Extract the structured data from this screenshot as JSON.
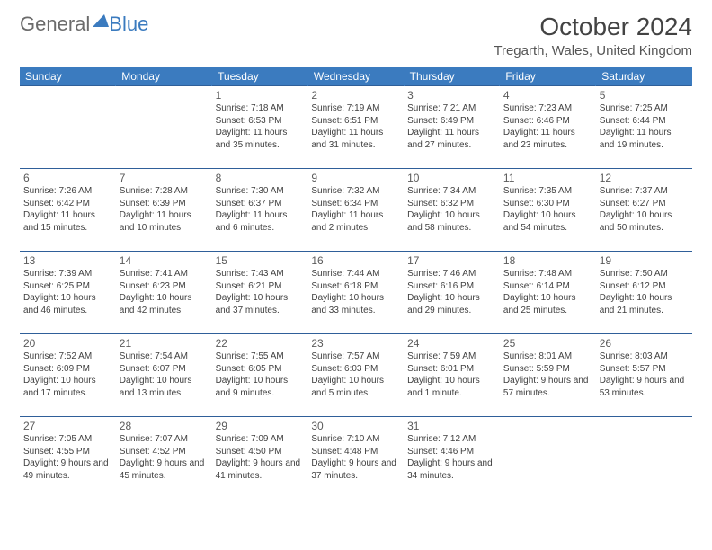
{
  "brand": {
    "text1": "General",
    "text2": "Blue",
    "color1": "#6b6b6b",
    "color2": "#3b7bbf"
  },
  "title": "October 2024",
  "location": "Tregarth, Wales, United Kingdom",
  "header_bg": "#3b7bbf",
  "header_text": "#ffffff",
  "rule_color": "#2f5f99",
  "weekdays": [
    "Sunday",
    "Monday",
    "Tuesday",
    "Wednesday",
    "Thursday",
    "Friday",
    "Saturday"
  ],
  "weeks": [
    [
      null,
      null,
      {
        "n": "1",
        "sr": "7:18 AM",
        "ss": "6:53 PM",
        "dl": "11 hours and 35 minutes."
      },
      {
        "n": "2",
        "sr": "7:19 AM",
        "ss": "6:51 PM",
        "dl": "11 hours and 31 minutes."
      },
      {
        "n": "3",
        "sr": "7:21 AM",
        "ss": "6:49 PM",
        "dl": "11 hours and 27 minutes."
      },
      {
        "n": "4",
        "sr": "7:23 AM",
        "ss": "6:46 PM",
        "dl": "11 hours and 23 minutes."
      },
      {
        "n": "5",
        "sr": "7:25 AM",
        "ss": "6:44 PM",
        "dl": "11 hours and 19 minutes."
      }
    ],
    [
      {
        "n": "6",
        "sr": "7:26 AM",
        "ss": "6:42 PM",
        "dl": "11 hours and 15 minutes."
      },
      {
        "n": "7",
        "sr": "7:28 AM",
        "ss": "6:39 PM",
        "dl": "11 hours and 10 minutes."
      },
      {
        "n": "8",
        "sr": "7:30 AM",
        "ss": "6:37 PM",
        "dl": "11 hours and 6 minutes."
      },
      {
        "n": "9",
        "sr": "7:32 AM",
        "ss": "6:34 PM",
        "dl": "11 hours and 2 minutes."
      },
      {
        "n": "10",
        "sr": "7:34 AM",
        "ss": "6:32 PM",
        "dl": "10 hours and 58 minutes."
      },
      {
        "n": "11",
        "sr": "7:35 AM",
        "ss": "6:30 PM",
        "dl": "10 hours and 54 minutes."
      },
      {
        "n": "12",
        "sr": "7:37 AM",
        "ss": "6:27 PM",
        "dl": "10 hours and 50 minutes."
      }
    ],
    [
      {
        "n": "13",
        "sr": "7:39 AM",
        "ss": "6:25 PM",
        "dl": "10 hours and 46 minutes."
      },
      {
        "n": "14",
        "sr": "7:41 AM",
        "ss": "6:23 PM",
        "dl": "10 hours and 42 minutes."
      },
      {
        "n": "15",
        "sr": "7:43 AM",
        "ss": "6:21 PM",
        "dl": "10 hours and 37 minutes."
      },
      {
        "n": "16",
        "sr": "7:44 AM",
        "ss": "6:18 PM",
        "dl": "10 hours and 33 minutes."
      },
      {
        "n": "17",
        "sr": "7:46 AM",
        "ss": "6:16 PM",
        "dl": "10 hours and 29 minutes."
      },
      {
        "n": "18",
        "sr": "7:48 AM",
        "ss": "6:14 PM",
        "dl": "10 hours and 25 minutes."
      },
      {
        "n": "19",
        "sr": "7:50 AM",
        "ss": "6:12 PM",
        "dl": "10 hours and 21 minutes."
      }
    ],
    [
      {
        "n": "20",
        "sr": "7:52 AM",
        "ss": "6:09 PM",
        "dl": "10 hours and 17 minutes."
      },
      {
        "n": "21",
        "sr": "7:54 AM",
        "ss": "6:07 PM",
        "dl": "10 hours and 13 minutes."
      },
      {
        "n": "22",
        "sr": "7:55 AM",
        "ss": "6:05 PM",
        "dl": "10 hours and 9 minutes."
      },
      {
        "n": "23",
        "sr": "7:57 AM",
        "ss": "6:03 PM",
        "dl": "10 hours and 5 minutes."
      },
      {
        "n": "24",
        "sr": "7:59 AM",
        "ss": "6:01 PM",
        "dl": "10 hours and 1 minute."
      },
      {
        "n": "25",
        "sr": "8:01 AM",
        "ss": "5:59 PM",
        "dl": "9 hours and 57 minutes."
      },
      {
        "n": "26",
        "sr": "8:03 AM",
        "ss": "5:57 PM",
        "dl": "9 hours and 53 minutes."
      }
    ],
    [
      {
        "n": "27",
        "sr": "7:05 AM",
        "ss": "4:55 PM",
        "dl": "9 hours and 49 minutes."
      },
      {
        "n": "28",
        "sr": "7:07 AM",
        "ss": "4:52 PM",
        "dl": "9 hours and 45 minutes."
      },
      {
        "n": "29",
        "sr": "7:09 AM",
        "ss": "4:50 PM",
        "dl": "9 hours and 41 minutes."
      },
      {
        "n": "30",
        "sr": "7:10 AM",
        "ss": "4:48 PM",
        "dl": "9 hours and 37 minutes."
      },
      {
        "n": "31",
        "sr": "7:12 AM",
        "ss": "4:46 PM",
        "dl": "9 hours and 34 minutes."
      },
      null,
      null
    ]
  ],
  "labels": {
    "sunrise": "Sunrise:",
    "sunset": "Sunset:",
    "daylight": "Daylight:"
  }
}
